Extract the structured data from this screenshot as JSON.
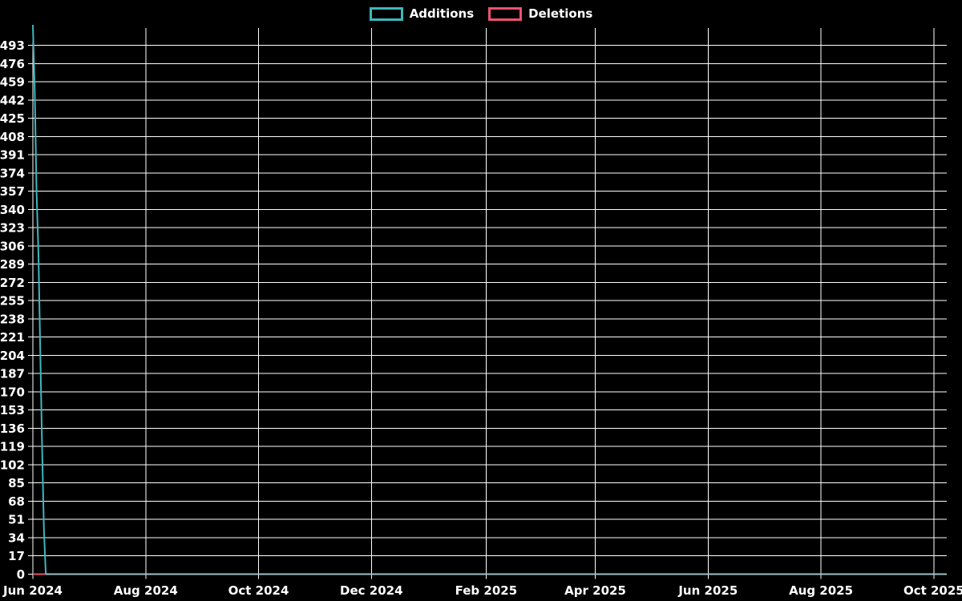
{
  "chart_data": {
    "type": "line",
    "title": "",
    "grid": true,
    "legend_position": "top-center",
    "background": "#000000",
    "colors": {
      "background": "#000000",
      "grid": "#ffffff",
      "text": "#ffffff",
      "additions": "#3db7bd",
      "deletions": "#ee5170",
      "zero_overlap": "#a3c1c6"
    },
    "xlim": [
      "2024-06-01",
      "2025-10-08"
    ],
    "ylim": [
      0,
      509
    ],
    "y_tick_step": 17,
    "y_ticks": [
      0,
      17,
      34,
      51,
      68,
      85,
      102,
      119,
      136,
      153,
      170,
      187,
      204,
      221,
      238,
      255,
      272,
      289,
      306,
      323,
      340,
      357,
      374,
      391,
      408,
      425,
      442,
      459,
      476,
      493
    ],
    "x_ticks": [
      {
        "label": "Jun 2024",
        "date": "2024-06-01"
      },
      {
        "label": "Aug 2024",
        "date": "2024-08-01"
      },
      {
        "label": "Oct 2024",
        "date": "2024-10-01"
      },
      {
        "label": "Dec 2024",
        "date": "2024-12-01"
      },
      {
        "label": "Feb 2025",
        "date": "2025-02-01"
      },
      {
        "label": "Apr 2025",
        "date": "2025-04-01"
      },
      {
        "label": "Jun 2025",
        "date": "2025-06-01"
      },
      {
        "label": "Aug 2025",
        "date": "2025-08-01"
      },
      {
        "label": "Oct 2025",
        "date": "2025-10-01"
      }
    ],
    "series": [
      {
        "name": "Additions",
        "color": "#3db7bd",
        "points": [
          [
            "2024-06-01",
            512
          ],
          [
            "2024-06-02",
            452
          ],
          [
            "2024-06-03",
            356
          ],
          [
            "2024-06-04",
            300
          ],
          [
            "2024-06-05",
            208
          ],
          [
            "2024-06-06",
            117
          ],
          [
            "2024-06-07",
            40
          ],
          [
            "2024-06-08",
            0
          ],
          [
            "2025-10-08",
            0
          ]
        ]
      },
      {
        "name": "Deletions",
        "color": "#ee5170",
        "points": [
          [
            "2024-06-01",
            0
          ],
          [
            "2025-10-08",
            0
          ]
        ]
      }
    ]
  }
}
